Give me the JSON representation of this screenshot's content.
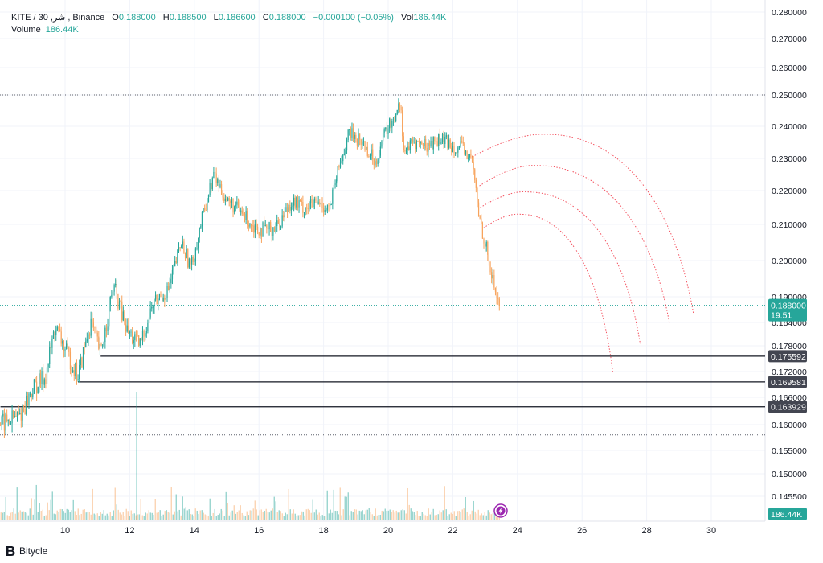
{
  "header": {
    "symbol": "KITE / 30 ,شر , Binance",
    "open_label": "O",
    "open": "0.188000",
    "high_label": "H",
    "high": "0.188500",
    "low_label": "L",
    "low": "0.186600",
    "close_label": "C",
    "close": "0.188000",
    "change": "−0.000100 (−0.05%)",
    "vol_label": "Vol",
    "vol": "186.44K",
    "volume_label": "Volume",
    "volume_value": "186.44K"
  },
  "footer": {
    "brand": "Bitycle"
  },
  "colors": {
    "up": "#26a69a",
    "down": "#f7a35c",
    "arc": "#f23645",
    "level": "#131722",
    "price_tag": "#26a69a",
    "level_tag": "#434651"
  },
  "chart_data": {
    "type": "candlestick",
    "x_ticks": [
      "10",
      "12",
      "14",
      "16",
      "18",
      "20",
      "22",
      "24",
      "26",
      "28",
      "30"
    ],
    "x_tick_values": [
      10,
      12,
      14,
      16,
      18,
      20,
      22,
      24,
      26,
      28,
      30
    ],
    "y_ticks": [
      "0.280000",
      "0.270000",
      "0.260000",
      "0.250000",
      "0.240000",
      "0.230000",
      "0.220000",
      "0.210000",
      "0.200000",
      "0.190000",
      "0.184000",
      "0.178000",
      "0.172000",
      "0.166000",
      "0.160000",
      "0.155000",
      "0.150000",
      "0.145500"
    ],
    "y_tick_values": [
      0.28,
      0.27,
      0.26,
      0.25,
      0.24,
      0.23,
      0.22,
      0.21,
      0.2,
      0.19,
      0.184,
      0.178,
      0.172,
      0.166,
      0.16,
      0.155,
      0.15,
      0.1455
    ],
    "price_path": [
      [
        8.0,
        0.16
      ],
      [
        8.6,
        0.162
      ],
      [
        9.0,
        0.168
      ],
      [
        9.4,
        0.171
      ],
      [
        9.7,
        0.183
      ],
      [
        10.0,
        0.177
      ],
      [
        10.4,
        0.171
      ],
      [
        10.8,
        0.184
      ],
      [
        11.1,
        0.176
      ],
      [
        11.5,
        0.193
      ],
      [
        11.9,
        0.182
      ],
      [
        12.3,
        0.178
      ],
      [
        12.7,
        0.188
      ],
      [
        13.2,
        0.192
      ],
      [
        13.6,
        0.205
      ],
      [
        13.9,
        0.198
      ],
      [
        14.3,
        0.214
      ],
      [
        14.6,
        0.225
      ],
      [
        15.0,
        0.217
      ],
      [
        15.4,
        0.214
      ],
      [
        15.8,
        0.21
      ],
      [
        16.2,
        0.208
      ],
      [
        16.6,
        0.21
      ],
      [
        17.0,
        0.217
      ],
      [
        17.4,
        0.215
      ],
      [
        17.8,
        0.216
      ],
      [
        18.2,
        0.215
      ],
      [
        18.5,
        0.228
      ],
      [
        18.8,
        0.238
      ],
      [
        19.2,
        0.235
      ],
      [
        19.6,
        0.229
      ],
      [
        19.9,
        0.238
      ],
      [
        20.2,
        0.243
      ],
      [
        20.35,
        0.249
      ],
      [
        20.5,
        0.232
      ],
      [
        20.8,
        0.235
      ],
      [
        21.2,
        0.234
      ],
      [
        21.6,
        0.236
      ],
      [
        22.0,
        0.234
      ],
      [
        22.3,
        0.233
      ],
      [
        22.6,
        0.229
      ],
      [
        22.8,
        0.213
      ],
      [
        23.0,
        0.205
      ],
      [
        23.15,
        0.198
      ],
      [
        23.3,
        0.192
      ],
      [
        23.45,
        0.188
      ]
    ],
    "last_price": "0.188000",
    "countdown": "19:51",
    "dotted_levels": [
      0.25,
      0.188,
      0.158
    ],
    "horizontal_levels": [
      {
        "value": 0.175592,
        "label": "0.175592",
        "from_x": 11.1
      },
      {
        "value": 0.169581,
        "label": "0.169581",
        "from_x": 10.4
      },
      {
        "value": 0.163929,
        "label": "0.163929",
        "from_x": 8.0
      }
    ],
    "volume_label": "186.44K",
    "volume_spike_x": 12.2,
    "arcs": [
      {
        "start": [
          22.6,
          0.2305
        ],
        "peak": [
          24.9,
          0.2375
        ],
        "end": [
          29.45,
          0.186
        ]
      },
      {
        "start": [
          22.75,
          0.221
        ],
        "peak": [
          24.6,
          0.2278
        ],
        "end": [
          28.7,
          0.184
        ]
      },
      {
        "start": [
          22.85,
          0.215
        ],
        "peak": [
          24.3,
          0.2196
        ],
        "end": [
          27.8,
          0.1785
        ]
      },
      {
        "start": [
          22.95,
          0.209
        ],
        "peak": [
          24.1,
          0.213
        ],
        "end": [
          26.95,
          0.172
        ]
      }
    ]
  }
}
